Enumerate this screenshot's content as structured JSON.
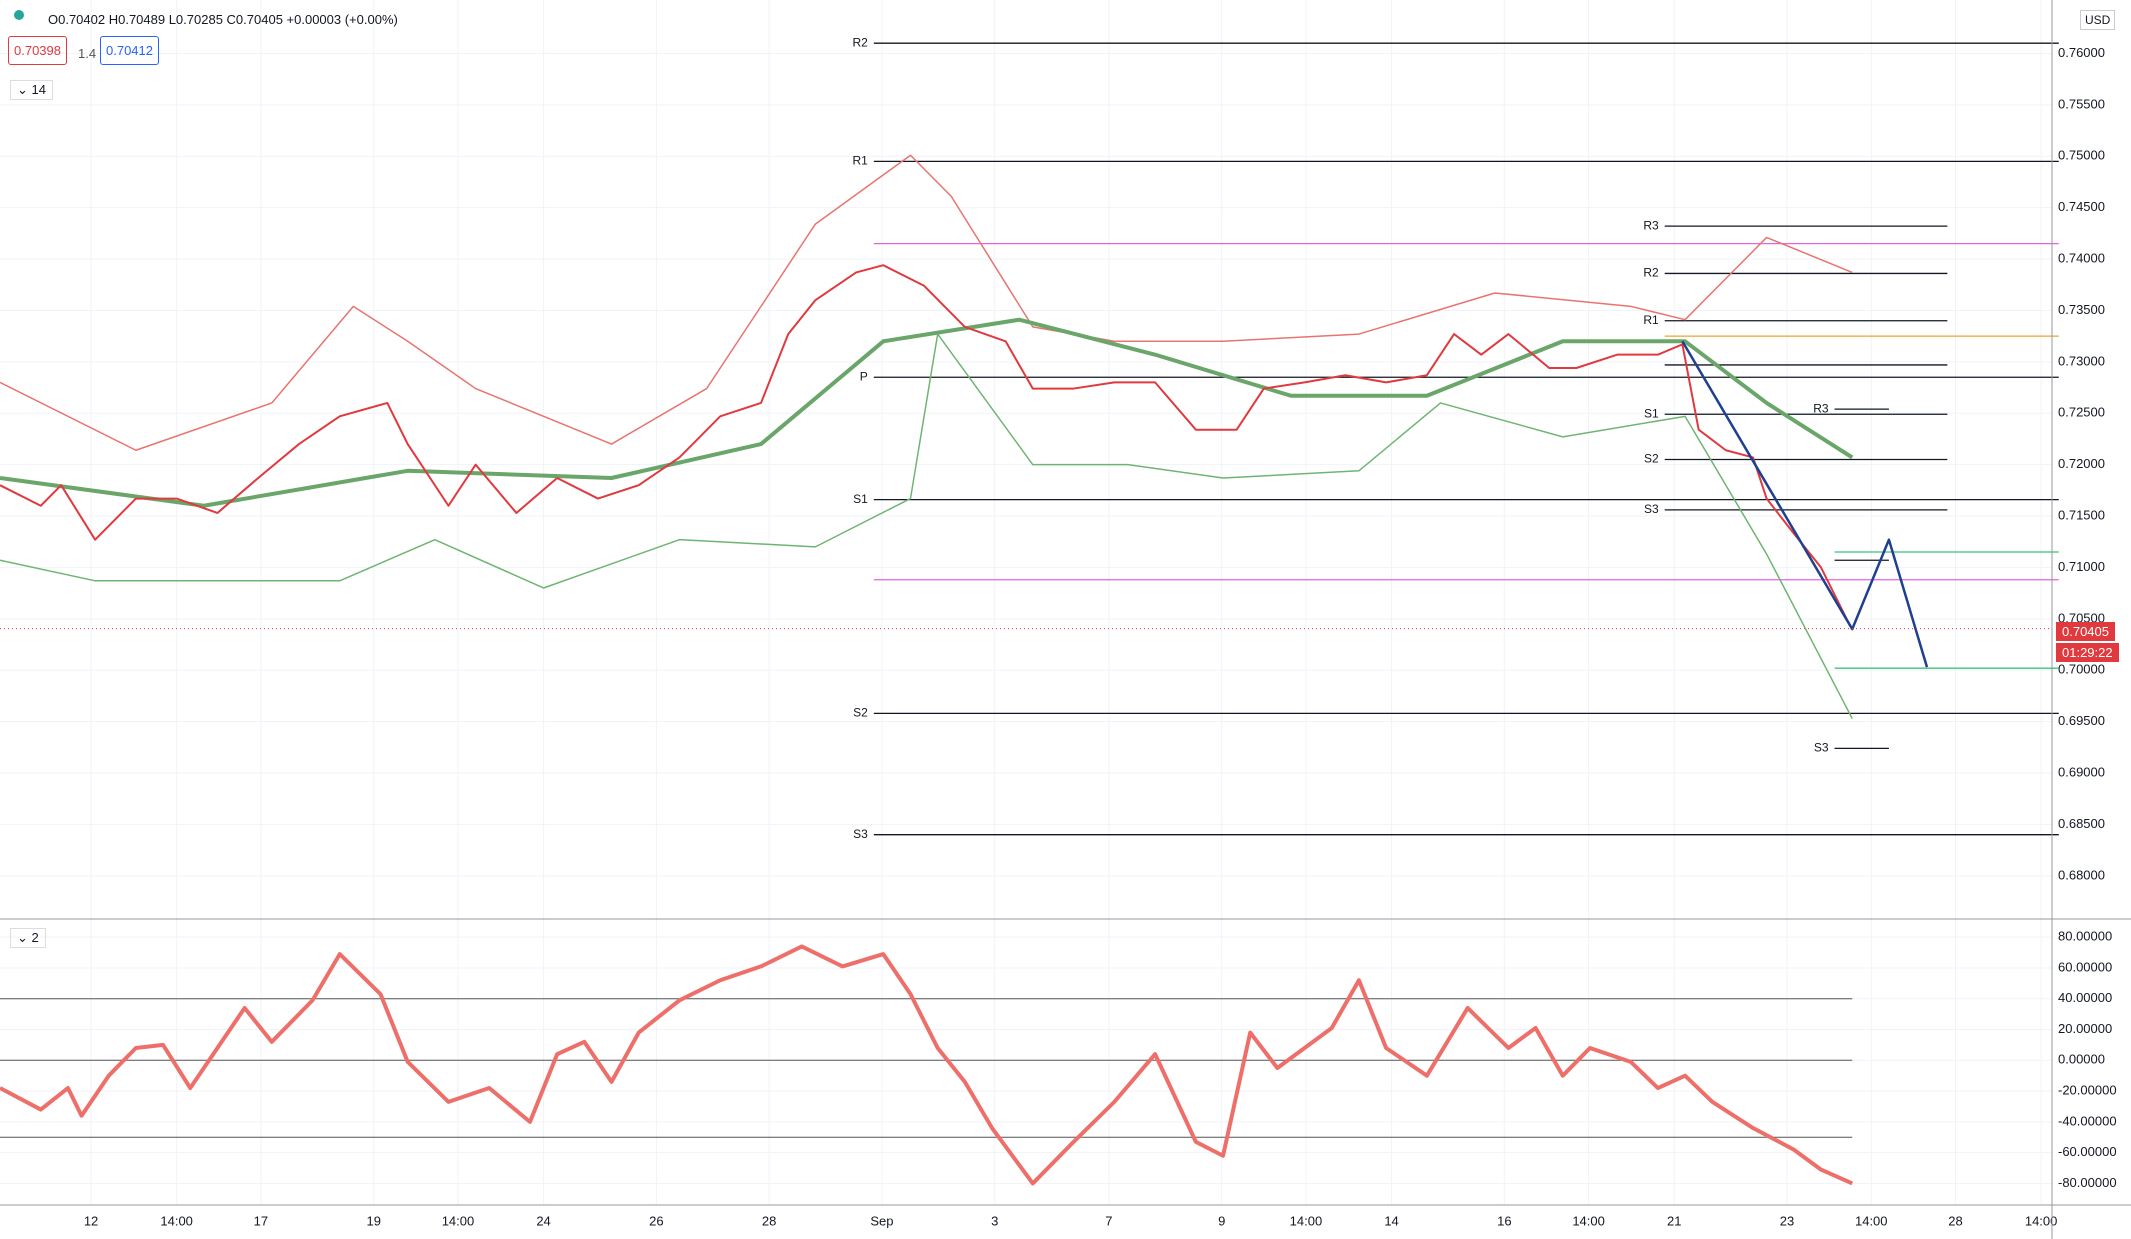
{
  "header": {
    "ohlc": "O0.70402 H0.70489 L0.70285 C0.70405 +0.00003 (+0.00%)",
    "bid": "0.70398",
    "spread": "1.4",
    "ask": "0.70412",
    "interval": "14",
    "pane2": "2",
    "currency": "USD",
    "last_price": "0.70405",
    "countdown": "01:29:22"
  },
  "chart_data": [
    {
      "type": "line",
      "xlim": [
        0,
        1510
      ],
      "ylim": [
        0.6758,
        0.7652
      ],
      "xticks": [
        {
          "value": 67,
          "label": "12"
        },
        {
          "value": 130,
          "label": "14:00"
        },
        {
          "value": 192,
          "label": "17"
        },
        {
          "value": 275,
          "label": "19"
        },
        {
          "value": 337,
          "label": "14:00"
        },
        {
          "value": 400,
          "label": "24"
        },
        {
          "value": 483,
          "label": "26"
        },
        {
          "value": 566,
          "label": "28"
        },
        {
          "value": 649,
          "label": "Sep"
        },
        {
          "value": 732,
          "label": "3"
        },
        {
          "value": 816,
          "label": "7"
        },
        {
          "value": 899,
          "label": "9"
        },
        {
          "value": 961,
          "label": "14:00"
        },
        {
          "value": 1024,
          "label": "14"
        },
        {
          "value": 1107,
          "label": "16"
        },
        {
          "value": 1169,
          "label": "14:00"
        },
        {
          "value": 1232,
          "label": "21"
        },
        {
          "value": 1315,
          "label": "23"
        },
        {
          "value": 1377,
          "label": "14:00"
        },
        {
          "value": 1439,
          "label": "28"
        },
        {
          "value": 1502,
          "label": "14:00"
        }
      ],
      "yticks": [
        {
          "value": 0.68,
          "label": "0.68000"
        },
        {
          "value": 0.685,
          "label": "0.68500"
        },
        {
          "value": 0.69,
          "label": "0.69000"
        },
        {
          "value": 0.695,
          "label": "0.69500"
        },
        {
          "value": 0.7,
          "label": "0.70000"
        },
        {
          "value": 0.705,
          "label": "0.70500"
        },
        {
          "value": 0.71,
          "label": "0.71000"
        },
        {
          "value": 0.715,
          "label": "0.71500"
        },
        {
          "value": 0.72,
          "label": "0.72000"
        },
        {
          "value": 0.725,
          "label": "0.72500"
        },
        {
          "value": 0.73,
          "label": "0.73000"
        },
        {
          "value": 0.735,
          "label": "0.73500"
        },
        {
          "value": 0.74,
          "label": "0.74000"
        },
        {
          "value": 0.745,
          "label": "0.74500"
        },
        {
          "value": 0.75,
          "label": "0.75000"
        },
        {
          "value": 0.755,
          "label": "0.75500"
        },
        {
          "value": 0.76,
          "label": "0.76000"
        }
      ],
      "grid": true,
      "last_value": 0.70405,
      "series": [
        {
          "color": "#e8746f",
          "width": 1.5,
          "x": [
            0,
            100,
            200,
            260,
            300,
            350,
            450,
            520,
            600,
            670,
            700,
            760,
            820,
            900,
            1000,
            1100,
            1200,
            1240,
            1300,
            1363
          ],
          "values": [
            0.728,
            0.7214,
            0.726,
            0.7354,
            0.732,
            0.7274,
            0.722,
            0.7274,
            0.7434,
            0.7501,
            0.7461,
            0.7334,
            0.732,
            0.732,
            0.7327,
            0.7367,
            0.7354,
            0.7341,
            0.7421,
            0.7387
          ]
        },
        {
          "color": "#6fb572",
          "width": 1.5,
          "x": [
            0,
            70,
            150,
            250,
            320,
            400,
            500,
            600,
            670,
            690,
            760,
            830,
            900,
            1000,
            1060,
            1150,
            1240,
            1300,
            1363
          ],
          "values": [
            0.7107,
            0.7087,
            0.7087,
            0.7087,
            0.7127,
            0.708,
            0.7127,
            0.712,
            0.7167,
            0.7327,
            0.72,
            0.72,
            0.7187,
            0.7194,
            0.726,
            0.7227,
            0.7247,
            0.7113,
            0.6953
          ]
        },
        {
          "color": "#6aa56a",
          "width": 4,
          "x": [
            0,
            150,
            300,
            450,
            560,
            650,
            750,
            850,
            950,
            1050,
            1150,
            1240,
            1300,
            1363
          ],
          "values": [
            0.7187,
            0.716,
            0.7194,
            0.7187,
            0.722,
            0.732,
            0.7341,
            0.7307,
            0.7267,
            0.7267,
            0.732,
            0.732,
            0.726,
            0.7207
          ]
        },
        {
          "color": "#e0393e",
          "width": 2,
          "x": [
            0,
            30,
            45,
            70,
            100,
            130,
            160,
            190,
            220,
            250,
            285,
            300,
            330,
            350,
            380,
            410,
            440,
            470,
            500,
            530,
            560,
            580,
            600,
            630,
            650,
            680,
            710,
            740,
            760,
            790,
            820,
            850,
            880,
            910,
            930,
            960,
            990,
            1020,
            1050,
            1070,
            1090,
            1110,
            1140,
            1160,
            1190,
            1220,
            1238,
            1250,
            1270,
            1290,
            1300,
            1320,
            1340,
            1360,
            1363
          ],
          "values": [
            0.718,
            0.716,
            0.718,
            0.7127,
            0.7167,
            0.7167,
            0.7153,
            0.7187,
            0.722,
            0.7247,
            0.726,
            0.722,
            0.716,
            0.72,
            0.7153,
            0.7187,
            0.7167,
            0.718,
            0.7207,
            0.7247,
            0.726,
            0.7327,
            0.736,
            0.7387,
            0.7394,
            0.7374,
            0.7334,
            0.732,
            0.7274,
            0.7274,
            0.728,
            0.728,
            0.7234,
            0.7234,
            0.7274,
            0.728,
            0.7287,
            0.728,
            0.7287,
            0.7327,
            0.7307,
            0.7327,
            0.7294,
            0.7294,
            0.7307,
            0.7307,
            0.7317,
            0.7234,
            0.7214,
            0.7207,
            0.7167,
            0.7133,
            0.71,
            0.7047,
            0.70405
          ]
        },
        {
          "color": "#1f3f8f",
          "width": 2.5,
          "x": [
            1238,
            1363,
            1390,
            1418
          ],
          "values": [
            0.732,
            0.704,
            0.7127,
            0.7003
          ]
        }
      ],
      "levels": [
        {
          "label": "R2",
          "value": 0.761,
          "x": [
            643,
            1515
          ],
          "color": "#131722"
        },
        {
          "label": "R1",
          "value": 0.7495,
          "x": [
            643,
            1515
          ],
          "color": "#131722"
        },
        {
          "label": "P",
          "value": 0.7285,
          "x": [
            643,
            1515
          ],
          "color": "#131722"
        },
        {
          "label": "S1",
          "value": 0.7166,
          "x": [
            643,
            1515
          ],
          "color": "#131722"
        },
        {
          "label": "S2",
          "value": 0.6958,
          "x": [
            643,
            1515
          ],
          "color": "#131722"
        },
        {
          "label": "S3",
          "value": 0.684,
          "x": [
            643,
            1515
          ],
          "color": "#131722"
        },
        {
          "label": "R3",
          "value": 0.7432,
          "x": [
            1225,
            1433
          ],
          "color": "#131722"
        },
        {
          "label": "R2",
          "value": 0.7386,
          "x": [
            1225,
            1433
          ],
          "color": "#131722"
        },
        {
          "label": "R1",
          "value": 0.734,
          "x": [
            1225,
            1433
          ],
          "color": "#131722"
        },
        {
          "label": "S1",
          "value": 0.7249,
          "x": [
            1225,
            1433
          ],
          "color": "#131722"
        },
        {
          "label": "S2",
          "value": 0.7205,
          "x": [
            1225,
            1433
          ],
          "color": "#131722"
        },
        {
          "label": "S3",
          "value": 0.7156,
          "x": [
            1225,
            1433
          ],
          "color": "#131722"
        },
        {
          "label": "R3",
          "value": 0.7254,
          "x": [
            1350,
            1390
          ],
          "color": "#131722"
        },
        {
          "label": "S3",
          "value": 0.6924,
          "x": [
            1350,
            1390
          ],
          "color": "#131722"
        },
        {
          "value": 0.7297,
          "x": [
            1225,
            1433
          ],
          "color": "#131722"
        },
        {
          "value": 0.7107,
          "x": [
            1350,
            1390
          ],
          "color": "#131722"
        },
        {
          "value": 0.7415,
          "x": [
            643,
            1515
          ],
          "color": "#e066e0"
        },
        {
          "value": 0.7088,
          "x": [
            643,
            1515
          ],
          "color": "#e066e0"
        },
        {
          "value": 0.7325,
          "x": [
            1225,
            1515
          ],
          "color": "#f0a030"
        },
        {
          "value": 0.7115,
          "x": [
            1350,
            1515
          ],
          "color": "#3cc47a"
        },
        {
          "value": 0.7002,
          "x": [
            1350,
            1515
          ],
          "color": "#3cc47a"
        }
      ]
    },
    {
      "type": "line",
      "xlim": [
        0,
        1510
      ],
      "ylim": [
        -94,
        90.5
      ],
      "yticks": [
        {
          "value": -80,
          "label": "-80.00000"
        },
        {
          "value": -60,
          "label": "-60.00000"
        },
        {
          "value": -40,
          "label": "-40.00000"
        },
        {
          "value": -20,
          "label": "-20.00000"
        },
        {
          "value": 0,
          "label": "0.00000"
        },
        {
          "value": 20,
          "label": "20.00000"
        },
        {
          "value": 40,
          "label": "40.00000"
        },
        {
          "value": 60,
          "label": "60.00000"
        },
        {
          "value": 80,
          "label": "80.00000"
        }
      ],
      "bands": [
        40,
        0,
        -50
      ],
      "series": [
        {
          "color": "#ee6f6a",
          "width": 4,
          "x": [
            0,
            30,
            50,
            60,
            80,
            100,
            120,
            140,
            160,
            180,
            200,
            230,
            250,
            280,
            300,
            330,
            360,
            390,
            410,
            430,
            450,
            470,
            500,
            530,
            560,
            590,
            620,
            650,
            670,
            690,
            710,
            730,
            760,
            790,
            820,
            850,
            880,
            900,
            920,
            940,
            960,
            980,
            1000,
            1020,
            1050,
            1080,
            1110,
            1130,
            1150,
            1170,
            1200,
            1220,
            1240,
            1260,
            1290,
            1320,
            1340,
            1363
          ],
          "values": [
            -18,
            -32,
            -18,
            -36,
            -10,
            8,
            10,
            -18,
            8,
            34,
            12,
            39,
            69,
            43,
            -1,
            -27,
            -18,
            -40,
            4,
            12,
            -14,
            18,
            39,
            52,
            61,
            74,
            61,
            69,
            43,
            8,
            -14,
            -44,
            -80,
            -53,
            -27,
            4,
            -53,
            -62,
            18,
            -5,
            8,
            21,
            52,
            8,
            -10,
            34,
            8,
            21,
            -10,
            8,
            -1,
            -18,
            -10,
            -27,
            -44,
            -58,
            -71,
            -80
          ]
        }
      ]
    }
  ]
}
